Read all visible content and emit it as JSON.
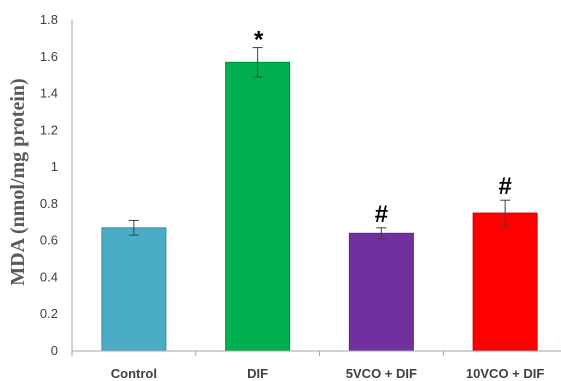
{
  "chart_data": {
    "type": "bar",
    "categories": [
      "Control",
      "DIF",
      "5VCO + DIF",
      "10VCO + DIF"
    ],
    "values": [
      0.67,
      1.57,
      0.64,
      0.75
    ],
    "errors": [
      0.04,
      0.08,
      0.03,
      0.07
    ],
    "annotations": [
      "",
      "*",
      "#",
      "#"
    ],
    "colors": [
      "#4bacc6",
      "#00b050",
      "#7030a0",
      "#ff0000"
    ],
    "edge_colors": [
      "#3a8ea6",
      "#00913f",
      "#5a2684",
      "#d10000"
    ],
    "ylabel": "MDA (nmol/mg protein)",
    "ylim": [
      0,
      1.8
    ],
    "yticks": [
      0,
      0.2,
      0.4,
      0.6,
      0.8,
      1,
      1.2,
      1.4,
      1.6,
      1.8
    ],
    "ytick_labels": [
      "0",
      "0.2",
      "0.4",
      "0.6",
      "0.8",
      "1",
      "1.2",
      "1.4",
      "1.6",
      "1.8"
    ],
    "grid": false,
    "legend": "none"
  }
}
